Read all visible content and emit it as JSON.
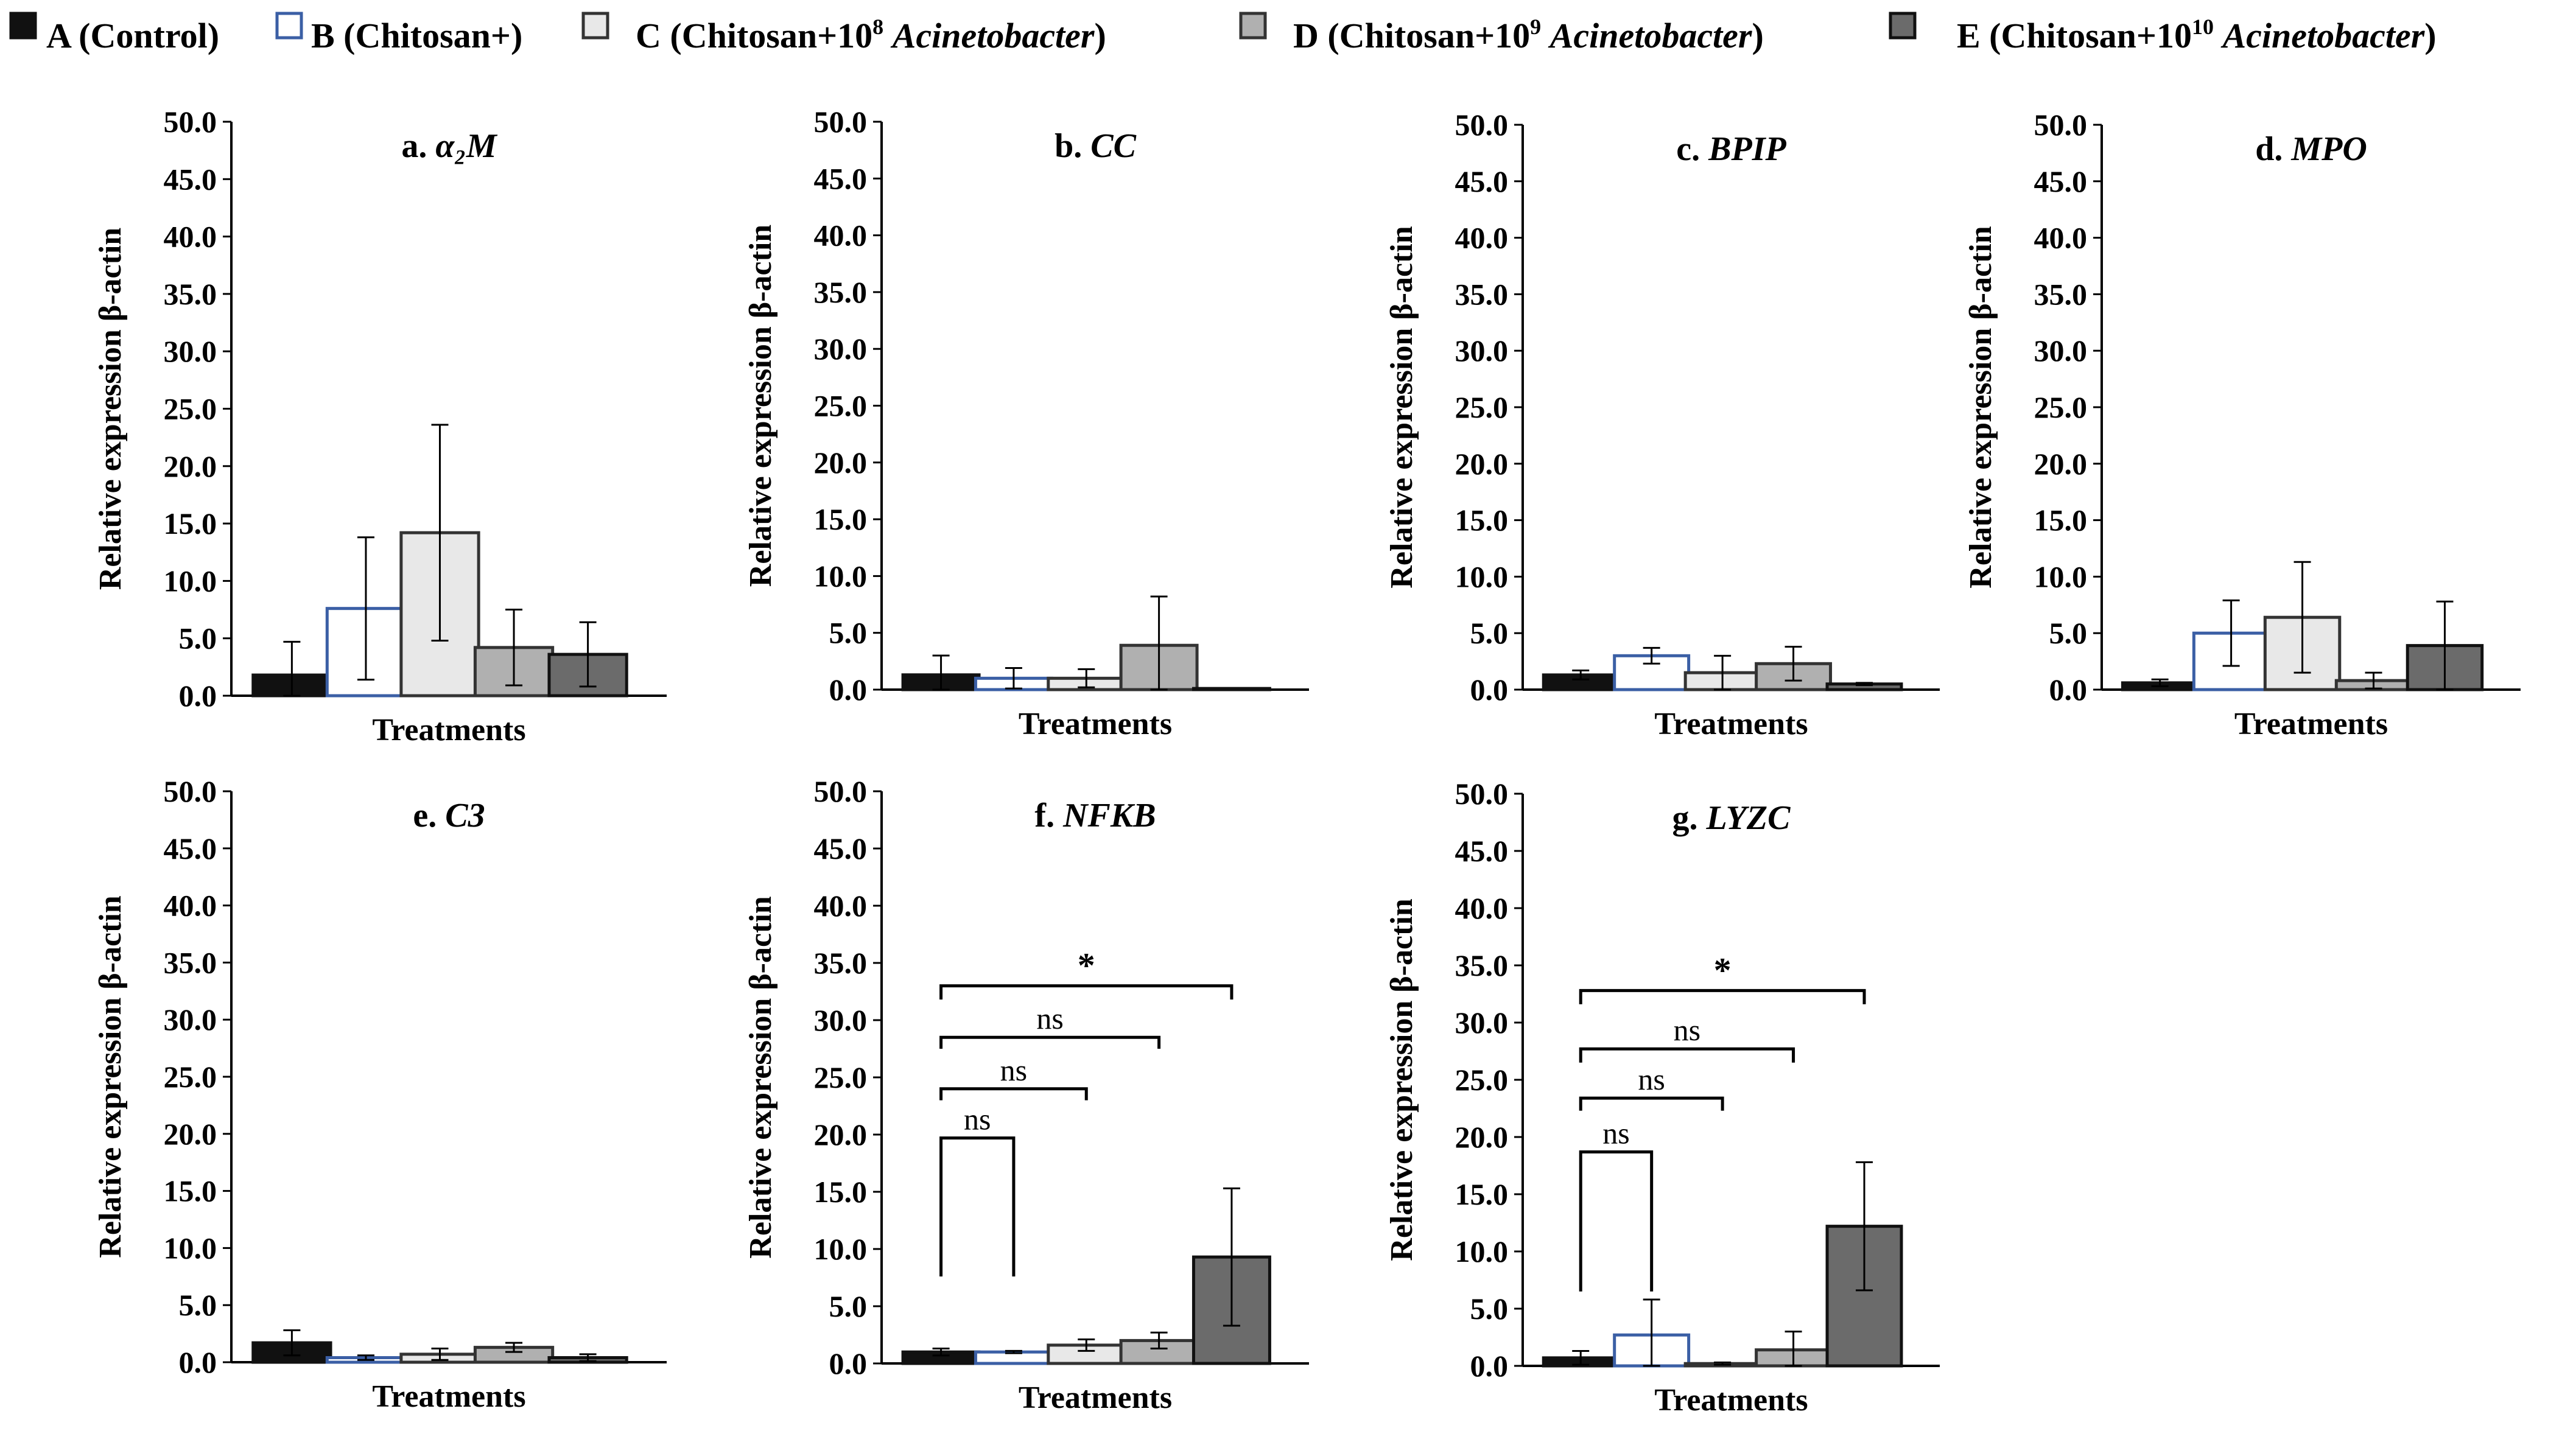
{
  "chart_data": {
    "type": "bar",
    "legend": {
      "placement": "top",
      "items": [
        {
          "key": "A",
          "prefix": "A (Control)",
          "italic": "",
          "suffix": "",
          "sup": "",
          "fill": "#111111",
          "stroke": "#111111"
        },
        {
          "key": "B",
          "prefix": "B (Chitosan+)",
          "italic": "",
          "suffix": "",
          "sup": "",
          "fill": "#ffffff",
          "stroke": "#3b5fa5"
        },
        {
          "key": "C",
          "prefix": "C (Chitosan+10",
          "sup": "8",
          "italic": "Acinetobacter",
          "suffix": ")",
          "fill": "#e8e8e8",
          "stroke": "#333333"
        },
        {
          "key": "D",
          "prefix": "D (Chitosan+10",
          "sup": "9",
          "italic": "Acinetobacter",
          "suffix": ")",
          "fill": "#b0b0b0",
          "stroke": "#333333"
        },
        {
          "key": "E",
          "prefix": "E (Chitosan+10",
          "sup": "10",
          "italic": "Acinetobacter",
          "suffix": ")",
          "fill": "#6b6b6b",
          "stroke": "#111111"
        }
      ]
    },
    "ylabel": "Relative expression β-actin",
    "xlabel": "Treatments",
    "ylim": [
      0,
      50
    ],
    "yticks": [
      "0.0",
      "5.0",
      "10.0",
      "15.0",
      "20.0",
      "25.0",
      "30.0",
      "35.0",
      "40.0",
      "45.0",
      "50.0"
    ],
    "panels": [
      {
        "id": "a",
        "letter": "a. ",
        "gene": "α₂M",
        "values": [
          1.8,
          7.6,
          14.2,
          4.2,
          3.6
        ],
        "errors": [
          2.9,
          6.2,
          9.4,
          3.3,
          2.8
        ],
        "comparisons": []
      },
      {
        "id": "b",
        "letter": "b. ",
        "gene": "CC",
        "values": [
          1.3,
          1.0,
          1.0,
          3.9,
          0.1
        ],
        "errors": [
          1.7,
          0.9,
          0.8,
          4.3,
          0.0
        ],
        "comparisons": []
      },
      {
        "id": "c",
        "letter": "c. ",
        "gene": "BPIP",
        "values": [
          1.3,
          3.0,
          1.5,
          2.3,
          0.5
        ],
        "errors": [
          0.4,
          0.7,
          1.5,
          1.5,
          0.1
        ],
        "comparisons": []
      },
      {
        "id": "d",
        "letter": "d. ",
        "gene": "MPO",
        "values": [
          0.6,
          5.0,
          6.4,
          0.8,
          3.9
        ],
        "errors": [
          0.3,
          2.9,
          4.9,
          0.7,
          3.9
        ],
        "comparisons": []
      },
      {
        "id": "e",
        "letter": "e. ",
        "gene": "C3",
        "values": [
          1.7,
          0.4,
          0.7,
          1.3,
          0.4
        ],
        "errors": [
          1.1,
          0.2,
          0.5,
          0.4,
          0.3
        ],
        "comparisons": []
      },
      {
        "id": "f",
        "letter": "f. ",
        "gene": "NFKB",
        "values": [
          1.0,
          1.0,
          1.6,
          2.0,
          9.3
        ],
        "errors": [
          0.3,
          0.1,
          0.5,
          0.7,
          6.0
        ],
        "comparisons": [
          {
            "from": 0,
            "to": 1,
            "label": "ns",
            "y": 19.7,
            "down_to_from": 7.6,
            "down_to_to": 7.6
          },
          {
            "from": 0,
            "to": 2,
            "label": "ns",
            "y": 24.0,
            "down_to_from": 23.0,
            "down_to_to": 23.0
          },
          {
            "from": 0,
            "to": 3,
            "label": "ns",
            "y": 28.5,
            "down_to_from": 27.5,
            "down_to_to": 27.5
          },
          {
            "from": 0,
            "to": 4,
            "label": "*",
            "y": 33.0,
            "down_to_from": 31.8,
            "down_to_to": 31.8
          }
        ]
      },
      {
        "id": "g",
        "letter": "g. ",
        "gene": "LYZC",
        "values": [
          0.7,
          2.7,
          0.2,
          1.4,
          12.2
        ],
        "errors": [
          0.6,
          3.1,
          0.1,
          1.6,
          5.6
        ],
        "comparisons": [
          {
            "from": 0,
            "to": 1,
            "label": "ns",
            "y": 18.7,
            "down_to_from": 6.5,
            "down_to_to": 6.5
          },
          {
            "from": 0,
            "to": 2,
            "label": "ns",
            "y": 23.4,
            "down_to_from": 22.3,
            "down_to_to": 22.3
          },
          {
            "from": 0,
            "to": 3,
            "label": "ns",
            "y": 27.7,
            "down_to_from": 26.5,
            "down_to_to": 26.5
          },
          {
            "from": 0,
            "to": 4,
            "label": "*",
            "y": 32.8,
            "down_to_from": 31.6,
            "down_to_to": 31.6
          }
        ]
      }
    ]
  }
}
